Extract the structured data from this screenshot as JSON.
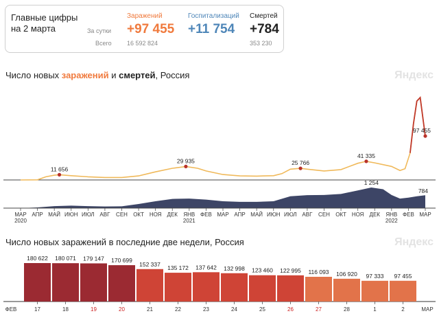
{
  "summary": {
    "title": "Главные цифры на 2 марта",
    "row_daily": "За сутки",
    "row_total": "Всего",
    "infections": {
      "label": "Заражений",
      "daily": "+97 455",
      "total": "16 592 824",
      "color": "#f07a3d"
    },
    "hospitalizations": {
      "label": "Госпитализаций",
      "daily": "+11 754",
      "total": "",
      "color": "#4e86b8"
    },
    "deaths": {
      "label": "Смертей",
      "daily": "+784",
      "total": "353 230",
      "color": "#222222"
    }
  },
  "chart1": {
    "title_prefix": "Число новых ",
    "title_infections": "заражений",
    "title_mid": " и ",
    "title_deaths": "смертей",
    "title_suffix": ", Россия",
    "watermark": "Яндекс"
  },
  "chart2": {
    "title": "Число новых заражений в последние две недели, Россия",
    "watermark": "Яндекс"
  },
  "chart_data": [
    {
      "type": "line",
      "title": "Число новых заражений и смертей, Россия",
      "x_tick_labels": [
        {
          "label": "МАР",
          "sub": "2020"
        },
        {
          "label": "АПР"
        },
        {
          "label": "МАЙ"
        },
        {
          "label": "ИЮН"
        },
        {
          "label": "ИЮЛ"
        },
        {
          "label": "АВГ"
        },
        {
          "label": "СЕН"
        },
        {
          "label": "ОКТ"
        },
        {
          "label": "НОЯ"
        },
        {
          "label": "ДЕК"
        },
        {
          "label": "ЯНВ",
          "sub": "2021"
        },
        {
          "label": "ФЕВ"
        },
        {
          "label": "МАР"
        },
        {
          "label": "АПР"
        },
        {
          "label": "МАЙ"
        },
        {
          "label": "ИЮН"
        },
        {
          "label": "ИЮЛ"
        },
        {
          "label": "АВГ"
        },
        {
          "label": "СЕН"
        },
        {
          "label": "ОКТ"
        },
        {
          "label": "НОЯ"
        },
        {
          "label": "ДЕК"
        },
        {
          "label": "ЯНВ",
          "sub": "2022"
        },
        {
          "label": "ФЕВ"
        },
        {
          "label": "МАР"
        }
      ],
      "series": [
        {
          "name": "заражений",
          "color": "#f0b95a",
          "peak_color": "#c0392b",
          "x": [
            0,
            1,
            1.5,
            2,
            2.3,
            3,
            4,
            5,
            6,
            7,
            8,
            9,
            9.8,
            10.5,
            11,
            12,
            13,
            14,
            15,
            15.5,
            16,
            16.6,
            17,
            18,
            19,
            20,
            20.5,
            21,
            22,
            22.5,
            22.8,
            23.1,
            23.3,
            23.5,
            23.7,
            23.85,
            24
          ],
          "values": [
            0,
            300,
            7000,
            10500,
            11656,
            9500,
            7000,
            5500,
            5500,
            9000,
            18000,
            26000,
            29935,
            26000,
            20000,
            12000,
            9000,
            8500,
            9500,
            14000,
            24000,
            25766,
            24000,
            20000,
            23000,
            37000,
            41335,
            38000,
            30000,
            21000,
            25000,
            60000,
            125000,
            175000,
            183000,
            140000,
            97455
          ],
          "labels": [
            {
              "x": 2.3,
              "value": 11656,
              "text": "11 656"
            },
            {
              "x": 9.8,
              "value": 29935,
              "text": "29 935"
            },
            {
              "x": 16.6,
              "value": 25766,
              "text": "25 766"
            },
            {
              "x": 20.5,
              "value": 41335,
              "text": "41 335"
            },
            {
              "x": 24,
              "value": 97455,
              "text": "97 455"
            }
          ]
        },
        {
          "name": "смертей",
          "color": "#3d4566",
          "x": [
            0,
            1,
            2,
            3,
            4,
            5,
            6,
            7,
            8,
            9,
            10,
            11,
            12,
            13,
            14,
            15,
            16,
            17,
            18,
            19,
            20,
            20.8,
            21.5,
            22,
            22.5,
            23,
            23.5,
            24
          ],
          "values": [
            0,
            40,
            120,
            150,
            120,
            100,
            110,
            250,
            420,
            560,
            580,
            520,
            420,
            380,
            380,
            420,
            720,
            790,
            800,
            860,
            1080,
            1254,
            1150,
            800,
            580,
            640,
            720,
            784
          ],
          "labels": [
            {
              "x": 20.8,
              "value": 1254,
              "text": "1 254"
            },
            {
              "x": 24,
              "value": 784,
              "text": "784"
            }
          ]
        }
      ]
    },
    {
      "type": "bar",
      "title": "Число новых заражений в последние две недели, Россия",
      "categories": [
        "17",
        "18",
        "19",
        "20",
        "21",
        "22",
        "23",
        "24",
        "25",
        "26",
        "27",
        "28",
        "1",
        "2"
      ],
      "values": [
        180622,
        180071,
        179147,
        170699,
        152337,
        135172,
        137642,
        132998,
        123460,
        122995,
        116093,
        106920,
        97333,
        97455
      ],
      "value_labels": [
        "180 622",
        "180 071",
        "179 147",
        "170 699",
        "152 337",
        "135 172",
        "137 642",
        "132 998",
        "123 460",
        "122 995",
        "116 093",
        "106 920",
        "97 333",
        "97 455"
      ],
      "bar_colors": [
        "#9b2a32",
        "#9b2a32",
        "#9b2a32",
        "#9b2a32",
        "#cf4436",
        "#cf4436",
        "#cf4436",
        "#cf4436",
        "#cf4436",
        "#cf4436",
        "#e2734a",
        "#e2734a",
        "#e2734a",
        "#e2734a"
      ],
      "tick_colors": [
        "#333333",
        "#333333",
        "#cc2222",
        "#cc2222",
        "#333333",
        "#333333",
        "#333333",
        "#333333",
        "#333333",
        "#cc2222",
        "#cc2222",
        "#333333",
        "#333333",
        "#333333"
      ],
      "month_start": "ФЕВ",
      "month_end": "МАР"
    }
  ]
}
